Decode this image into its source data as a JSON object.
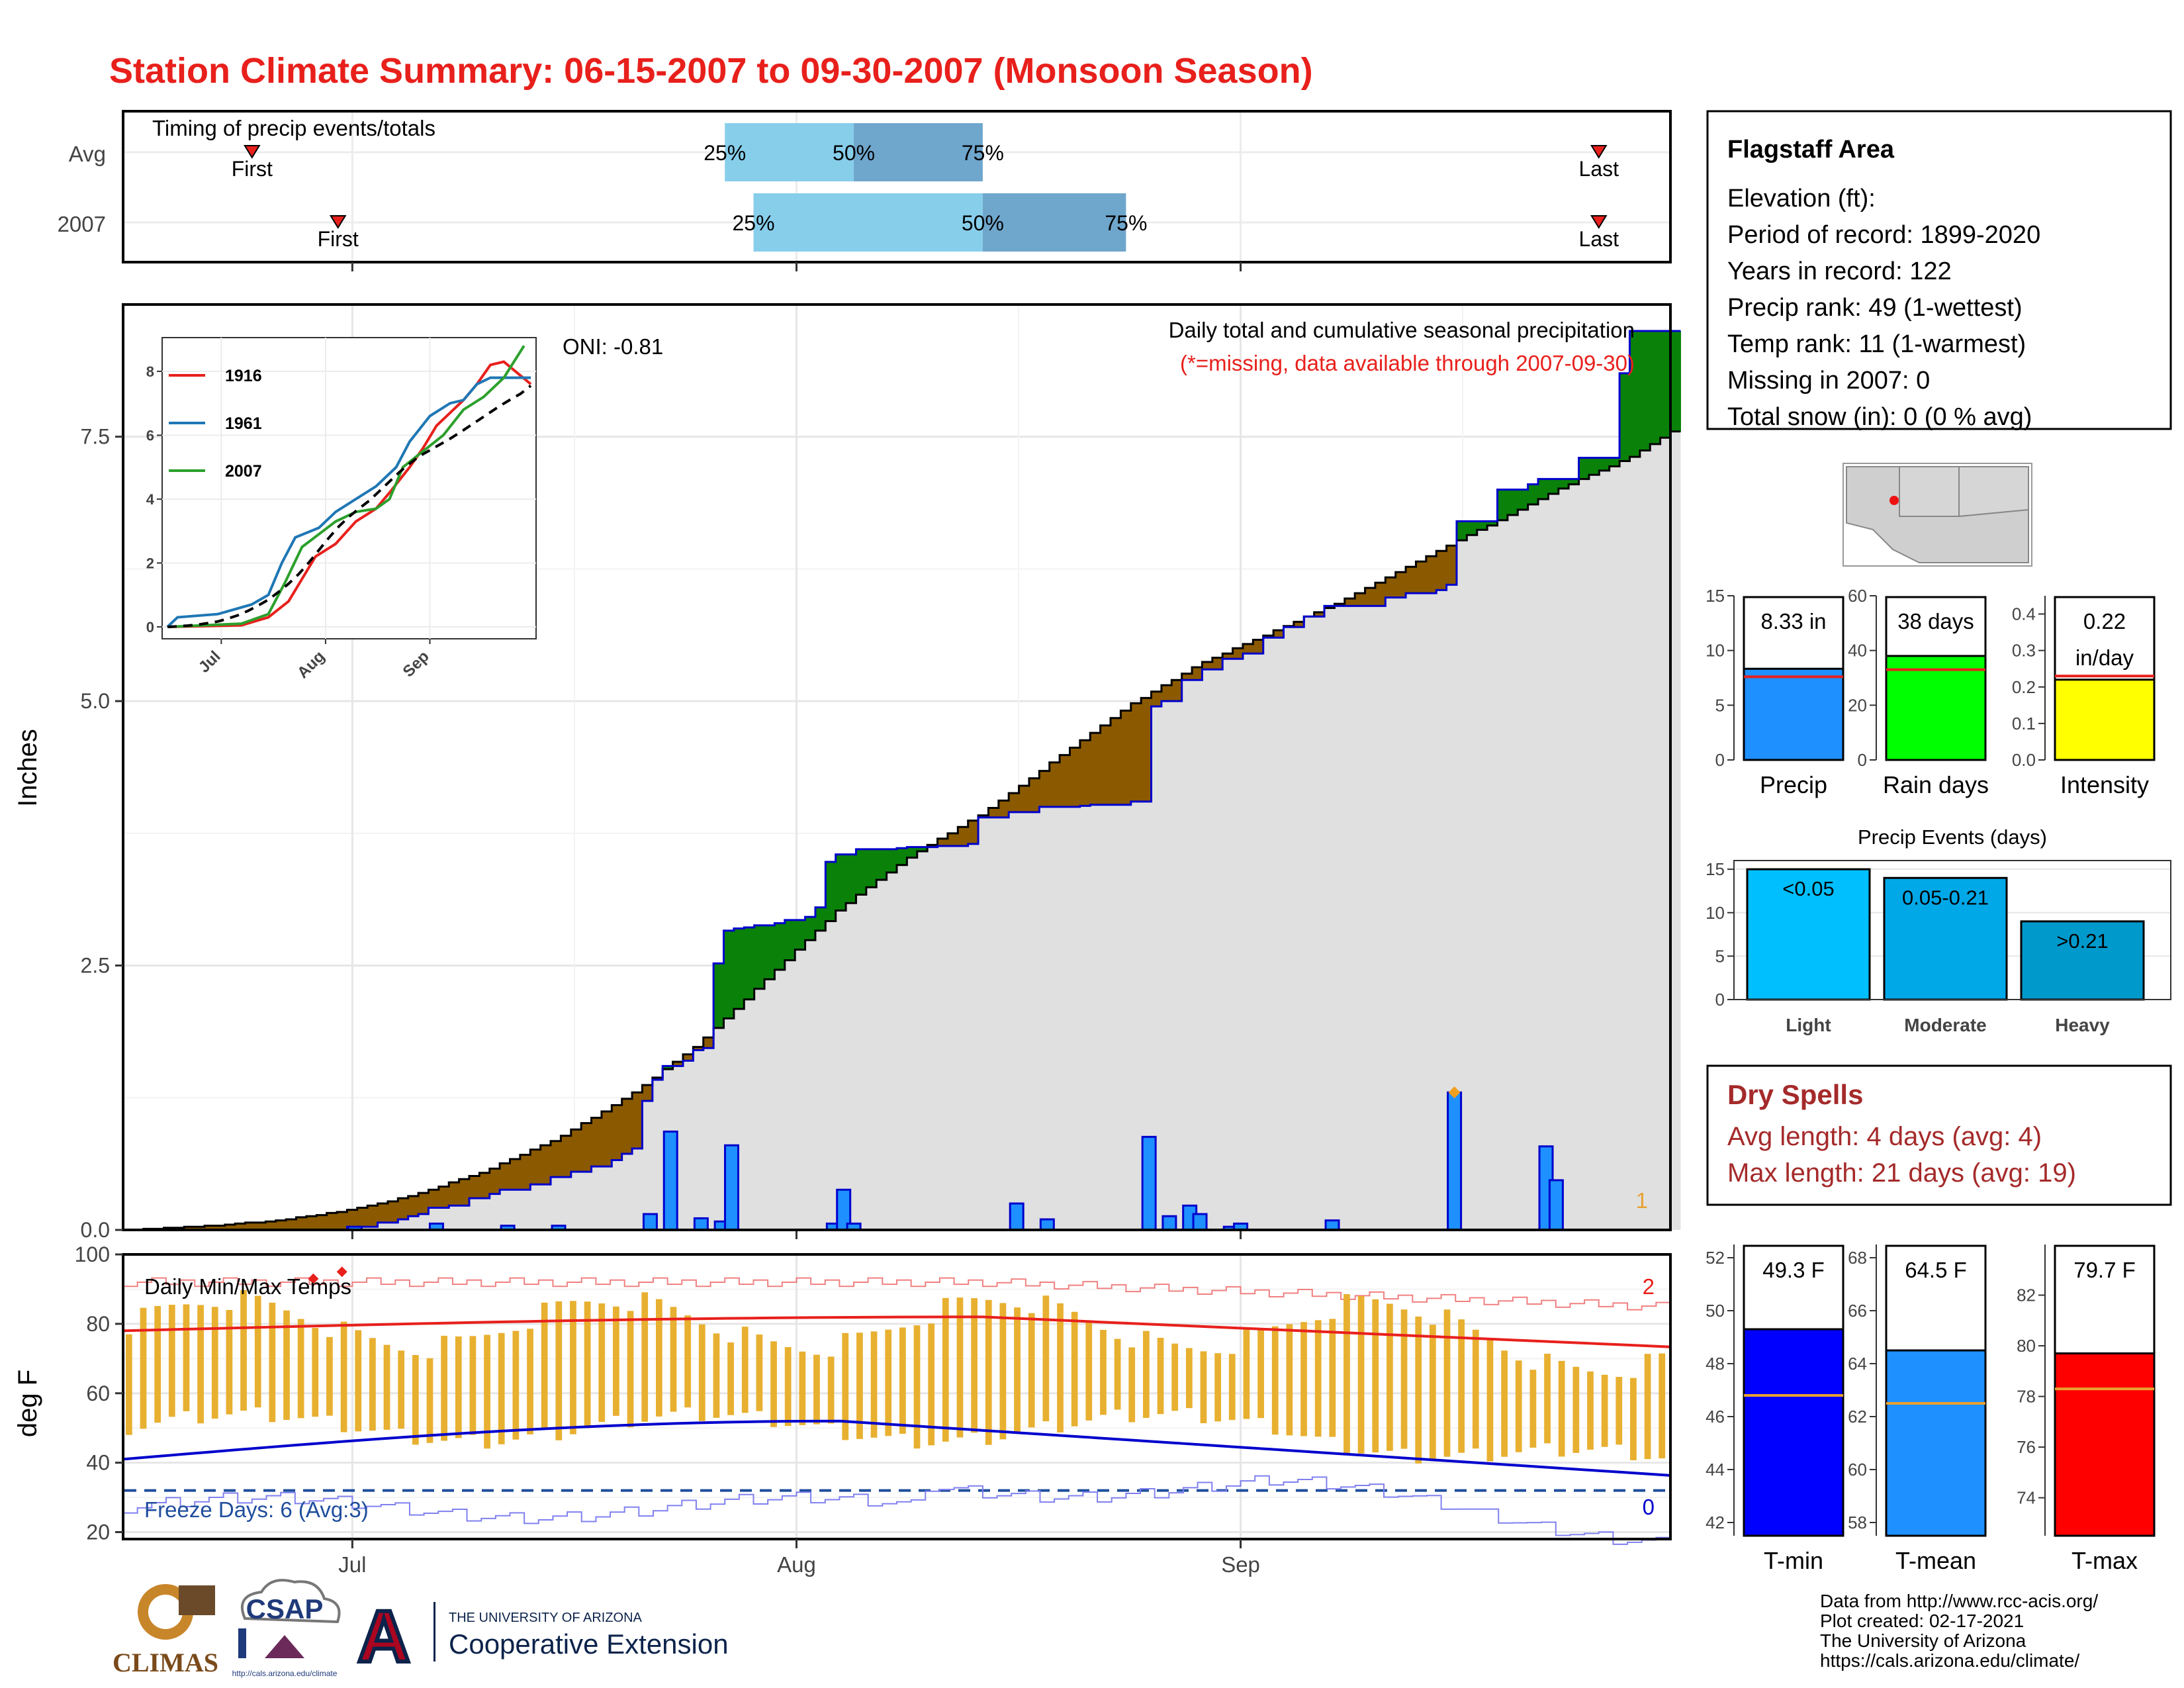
{
  "title": "Station Climate Summary: 06-15-2007 to 09-30-2007 (Monsoon Season)",
  "colors": {
    "title": "#e8201c",
    "light": "#87ceeb",
    "mid": "#6fa6cc",
    "brown": "#8b5a00",
    "green": "#0a820a",
    "fill": "#e0e0e0",
    "bar": "#1e90ff",
    "barEdge": "#0000cd",
    "tmean": "#e8201c",
    "tmin": "#0000cd",
    "range": "#e8b030"
  },
  "timing": {
    "label": "Timing of precip events/totals",
    "rows": [
      "Avg",
      "2007"
    ],
    "avg": {
      "first": "06-24",
      "q25": "07-27",
      "q50": "08-05",
      "q75": "08-14",
      "last": "09-26"
    },
    "y2007": {
      "first": "06-30",
      "q25": "07-29",
      "q50": "08-14",
      "q75": "08-24",
      "last": "09-26"
    },
    "first_label": "First",
    "last_label": "Last",
    "p25": "25%",
    "p50": "50%",
    "p75": "75%"
  },
  "chart_data": [
    {
      "type": "area",
      "title": "Daily total and cumulative seasonal precipitation",
      "subtitle": "(*=missing, data available through 2007-09-30)",
      "ylabel": "Inches",
      "ylim": [
        0,
        8.75
      ],
      "yticks": [
        "0.0",
        "2.5",
        "5.0",
        "7.5"
      ],
      "xticks": [
        "Jul",
        "Aug",
        "Sep"
      ],
      "oni": "ONI: -0.81",
      "corner_count": "1",
      "avg_cumulative": [
        [
          0,
          0
        ],
        [
          5,
          0.03
        ],
        [
          10,
          0.08
        ],
        [
          15,
          0.17
        ],
        [
          20,
          0.32
        ],
        [
          25,
          0.55
        ],
        [
          30,
          0.85
        ],
        [
          35,
          1.25
        ],
        [
          40,
          1.75
        ],
        [
          45,
          2.4
        ],
        [
          50,
          3.05
        ],
        [
          55,
          3.55
        ],
        [
          60,
          3.95
        ],
        [
          65,
          4.45
        ],
        [
          70,
          4.95
        ],
        [
          75,
          5.35
        ],
        [
          80,
          5.65
        ],
        [
          85,
          5.95
        ],
        [
          90,
          6.3
        ],
        [
          95,
          6.65
        ],
        [
          100,
          7.0
        ],
        [
          105,
          7.3
        ],
        [
          108,
          7.55
        ]
      ],
      "cumulative_2007": [
        [
          0,
          0
        ],
        [
          22,
          0.03
        ],
        [
          25,
          0.07
        ],
        [
          27,
          0.1
        ],
        [
          28,
          0.13
        ],
        [
          29,
          0.15
        ],
        [
          30,
          0.21
        ],
        [
          32,
          0.23
        ],
        [
          34,
          0.3
        ],
        [
          36,
          0.34
        ],
        [
          37,
          0.38
        ],
        [
          40,
          0.43
        ],
        [
          42,
          0.5
        ],
        [
          44,
          0.55
        ],
        [
          46,
          0.6
        ],
        [
          48,
          0.66
        ],
        [
          49,
          0.72
        ],
        [
          50,
          0.77
        ],
        [
          51,
          1.22
        ],
        [
          52,
          1.42
        ],
        [
          53,
          1.55
        ],
        [
          55,
          1.6
        ],
        [
          56,
          1.7
        ],
        [
          57,
          1.72
        ],
        [
          58,
          2.52
        ],
        [
          59,
          2.83
        ],
        [
          60,
          2.85
        ],
        [
          61,
          2.86
        ],
        [
          62,
          2.88
        ],
        [
          64,
          2.9
        ],
        [
          65,
          2.93
        ],
        [
          67,
          2.96
        ],
        [
          68,
          3.05
        ],
        [
          69,
          3.48
        ],
        [
          70,
          3.55
        ],
        [
          72,
          3.6
        ],
        [
          76,
          3.61
        ],
        [
          77,
          3.62
        ],
        [
          80,
          3.63
        ],
        [
          83,
          3.65
        ],
        [
          84,
          3.9
        ],
        [
          87,
          3.95
        ],
        [
          90,
          4.0
        ],
        [
          94,
          4.01
        ],
        [
          95,
          4.02
        ],
        [
          99,
          4.05
        ],
        [
          100,
          4.05
        ],
        [
          100.5,
          4.95
        ],
        [
          102,
          5.0
        ],
        [
          104,
          5.2
        ],
        [
          106,
          5.3
        ],
        [
          108,
          5.4
        ],
        [
          110,
          5.45
        ],
        [
          112,
          5.6
        ],
        [
          114,
          5.7
        ],
        [
          116,
          5.8
        ],
        [
          118,
          5.9
        ],
        [
          124,
          5.98
        ],
        [
          126,
          6.02
        ],
        [
          129,
          6.05
        ],
        [
          130,
          6.1
        ],
        [
          131,
          6.7
        ],
        [
          135,
          7.0
        ],
        [
          138,
          7.05
        ],
        [
          139,
          7.1
        ],
        [
          143,
          7.3
        ],
        [
          147,
          8.1
        ],
        [
          148,
          8.5
        ],
        [
          150,
          8.5
        ],
        [
          152,
          8.5
        ]
      ],
      "daily_2007": [
        [
          22,
          0.03
        ],
        [
          30,
          0.06
        ],
        [
          37,
          0.04
        ],
        [
          42,
          0.04
        ],
        [
          51,
          0.15
        ],
        [
          53,
          0.93
        ],
        [
          56,
          0.11
        ],
        [
          58,
          0.08
        ],
        [
          59,
          0.8
        ],
        [
          69,
          0.06
        ],
        [
          70,
          0.38
        ],
        [
          71,
          0.06
        ],
        [
          87,
          0.25
        ],
        [
          90,
          0.1
        ],
        [
          100,
          0.88
        ],
        [
          102,
          0.13
        ],
        [
          104,
          0.23
        ],
        [
          105,
          0.15
        ],
        [
          108,
          0.03
        ],
        [
          109,
          0.06
        ],
        [
          118,
          0.09
        ],
        [
          130,
          1.3
        ],
        [
          139,
          0.79
        ],
        [
          140,
          0.47
        ]
      ]
    },
    {
      "type": "line",
      "title": "",
      "series": [
        {
          "name": "1916"
        },
        {
          "name": "1961"
        },
        {
          "name": "2007"
        }
      ],
      "yticks": [
        "0",
        "2",
        "4",
        "6",
        "8"
      ],
      "xticks": [
        "Jul",
        "Aug",
        "Sep"
      ]
    },
    {
      "type": "line",
      "title": "Daily Min/Max Temps",
      "ylabel": "deg F",
      "ylim": [
        18,
        100
      ],
      "yticks": [
        "20",
        "40",
        "60",
        "80",
        "100"
      ],
      "xticks": [
        "Jul",
        "Aug",
        "Sep"
      ],
      "freeze": "Freeze Days: 6 (Avg:3)",
      "records_high": "2",
      "records_low": "0",
      "freeze_line": 32
    },
    {
      "type": "bar",
      "categories": [
        "Precip",
        "Rain days",
        "Intensity"
      ],
      "values": [
        8.33,
        38,
        0.22
      ],
      "averages": [
        7.6,
        33,
        0.23
      ],
      "labels": [
        "8.33 in",
        "38 days",
        "0.22",
        "in/day"
      ],
      "yticks": [
        [
          "0",
          "5",
          "10",
          "15"
        ],
        [
          "0",
          "20",
          "40",
          "60"
        ],
        [
          "0.0",
          "0.1",
          "0.2",
          "0.3",
          "0.4"
        ]
      ],
      "ylims": [
        [
          0,
          15
        ],
        [
          0,
          60
        ],
        [
          0,
          0.45
        ]
      ]
    },
    {
      "type": "bar",
      "title": "Precip Events (days)",
      "categories": [
        "Light",
        "Moderate",
        "Heavy"
      ],
      "values": [
        15,
        14,
        9
      ],
      "bar_labels": [
        "<0.05",
        "0.05-0.21",
        ">0.21"
      ],
      "yticks": [
        "0",
        "5",
        "10",
        "15"
      ],
      "ylim": [
        0,
        16
      ]
    },
    {
      "type": "bar",
      "categories": [
        "T-min",
        "T-mean",
        "T-max"
      ],
      "values": [
        49.3,
        64.5,
        79.7
      ],
      "averages": [
        46.8,
        62.5,
        78.3
      ],
      "labels": [
        "49.3 F",
        "64.5 F",
        "79.7 F"
      ],
      "yticks": [
        [
          "42",
          "44",
          "46",
          "48",
          "50",
          "52"
        ],
        [
          "58",
          "60",
          "62",
          "64",
          "66",
          "68"
        ],
        [
          "74",
          "76",
          "78",
          "80",
          "82"
        ]
      ],
      "ylims": [
        [
          41.5,
          52.5
        ],
        [
          57.5,
          68.5
        ],
        [
          72.5,
          84
        ]
      ]
    }
  ],
  "station": {
    "name": "Flagstaff Area",
    "lines": [
      "Elevation (ft):",
      "Period of record: 1899-2020",
      "Years in record: 122",
      "Precip rank: 49 (1-wettest)",
      "Temp rank: 11 (1-warmest)",
      "Missing in 2007: 0",
      "Total snow (in): 0 (0 % avg)"
    ]
  },
  "dry": {
    "title": "Dry Spells",
    "lines": [
      "Avg length: 4 days (avg: 4)",
      "Max length: 21 days (avg: 19)"
    ]
  },
  "footer": [
    "Data from http://www.rcc-acis.org/",
    "Plot created: 02-17-2021",
    "The University of Arizona",
    "https://cals.arizona.edu/climate/"
  ],
  "logos": {
    "climas": "CLIMAS",
    "csap": "CSAP",
    "csap_url": "http://cals.arizona.edu/climate",
    "ua_line1": "THE UNIVERSITY OF ARIZONA",
    "ua_line2": "Cooperative Extension",
    "ua_letter": "A"
  }
}
